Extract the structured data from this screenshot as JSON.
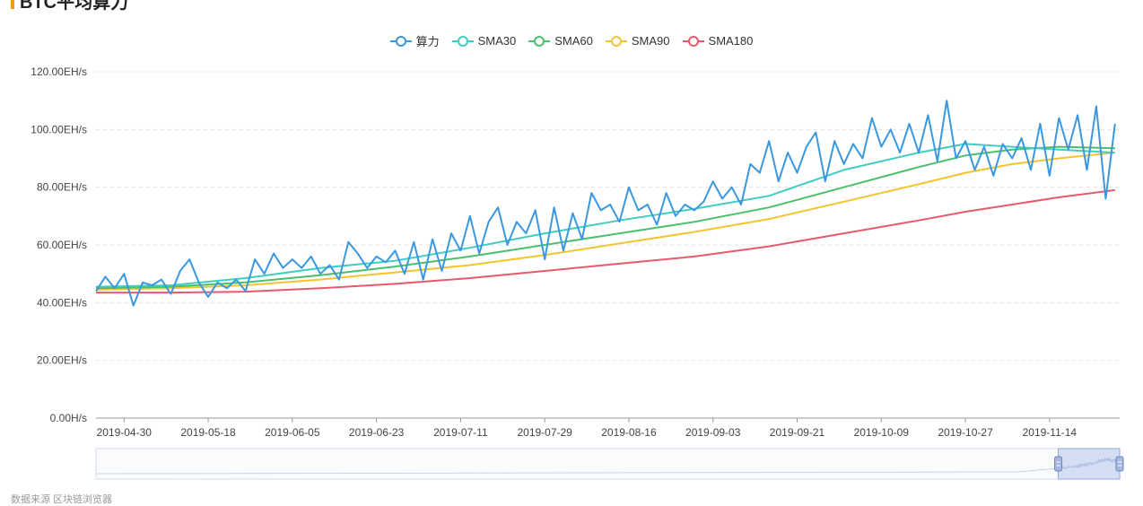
{
  "title": "BTC平均算力",
  "accent_color": "#f39a1e",
  "chart_data": {
    "type": "line",
    "y_unit": "EH/s",
    "ylim": [
      0,
      120
    ],
    "y_ticks": [
      "0.00H/s",
      "20.00EH/s",
      "40.00EH/s",
      "60.00EH/s",
      "80.00EH/s",
      "100.00EH/s",
      "120.00EH/s"
    ],
    "x_ticks": [
      "2019-04-30",
      "2019-05-18",
      "2019-06-05",
      "2019-06-23",
      "2019-07-11",
      "2019-07-29",
      "2019-08-16",
      "2019-09-03",
      "2019-09-21",
      "2019-10-09",
      "2019-10-27",
      "2019-11-14"
    ],
    "x_range": [
      "2019-04-24",
      "2019-11-29"
    ],
    "grid": "horizontal-dashed",
    "legend_position": "top-center",
    "series": [
      {
        "name": "算力",
        "color": "#3a98e0",
        "x": [
          "2019-04-24",
          "2019-04-26",
          "2019-04-28",
          "2019-04-30",
          "2019-05-02",
          "2019-05-04",
          "2019-05-06",
          "2019-05-08",
          "2019-05-10",
          "2019-05-12",
          "2019-05-14",
          "2019-05-16",
          "2019-05-18",
          "2019-05-20",
          "2019-05-22",
          "2019-05-24",
          "2019-05-26",
          "2019-05-28",
          "2019-05-30",
          "2019-06-01",
          "2019-06-03",
          "2019-06-05",
          "2019-06-07",
          "2019-06-09",
          "2019-06-11",
          "2019-06-13",
          "2019-06-15",
          "2019-06-17",
          "2019-06-19",
          "2019-06-21",
          "2019-06-23",
          "2019-06-25",
          "2019-06-27",
          "2019-06-29",
          "2019-07-01",
          "2019-07-03",
          "2019-07-05",
          "2019-07-07",
          "2019-07-09",
          "2019-07-11",
          "2019-07-13",
          "2019-07-15",
          "2019-07-17",
          "2019-07-19",
          "2019-07-21",
          "2019-07-23",
          "2019-07-25",
          "2019-07-27",
          "2019-07-29",
          "2019-07-31",
          "2019-08-02",
          "2019-08-04",
          "2019-08-06",
          "2019-08-08",
          "2019-08-10",
          "2019-08-12",
          "2019-08-14",
          "2019-08-16",
          "2019-08-18",
          "2019-08-20",
          "2019-08-22",
          "2019-08-24",
          "2019-08-26",
          "2019-08-28",
          "2019-08-30",
          "2019-09-01",
          "2019-09-03",
          "2019-09-05",
          "2019-09-07",
          "2019-09-09",
          "2019-09-11",
          "2019-09-13",
          "2019-09-15",
          "2019-09-17",
          "2019-09-19",
          "2019-09-21",
          "2019-09-23",
          "2019-09-25",
          "2019-09-27",
          "2019-09-29",
          "2019-10-01",
          "2019-10-03",
          "2019-10-05",
          "2019-10-07",
          "2019-10-09",
          "2019-10-11",
          "2019-10-13",
          "2019-10-15",
          "2019-10-17",
          "2019-10-19",
          "2019-10-21",
          "2019-10-23",
          "2019-10-25",
          "2019-10-27",
          "2019-10-29",
          "2019-10-31",
          "2019-11-02",
          "2019-11-04",
          "2019-11-06",
          "2019-11-08",
          "2019-11-10",
          "2019-11-12",
          "2019-11-14",
          "2019-11-16",
          "2019-11-18",
          "2019-11-20",
          "2019-11-22",
          "2019-11-24",
          "2019-11-26",
          "2019-11-28"
        ],
        "values": [
          44,
          49,
          45,
          50,
          39,
          47,
          46,
          48,
          43,
          51,
          55,
          47,
          42,
          47,
          45,
          48,
          44,
          55,
          50,
          57,
          52,
          55,
          52,
          56,
          50,
          53,
          48,
          61,
          57,
          52,
          56,
          54,
          58,
          50,
          61,
          48,
          62,
          51,
          64,
          58,
          70,
          57,
          68,
          73,
          60,
          68,
          64,
          72,
          55,
          73,
          58,
          71,
          62,
          78,
          72,
          74,
          68,
          80,
          72,
          74,
          67,
          78,
          70,
          74,
          72,
          75,
          82,
          76,
          80,
          74,
          88,
          85,
          96,
          82,
          92,
          85,
          94,
          99,
          82,
          96,
          88,
          95,
          90,
          104,
          94,
          100,
          92,
          102,
          92,
          105,
          89,
          110,
          90,
          96,
          86,
          94,
          84,
          95,
          90,
          97,
          86,
          102,
          84,
          104,
          93,
          105,
          86,
          108,
          76,
          102
        ]
      },
      {
        "name": "SMA30",
        "color": "#3fcdc3",
        "x": [
          "2019-04-24",
          "2019-05-10",
          "2019-05-26",
          "2019-06-11",
          "2019-06-27",
          "2019-07-13",
          "2019-07-29",
          "2019-08-14",
          "2019-08-30",
          "2019-09-15",
          "2019-10-01",
          "2019-10-17",
          "2019-10-27",
          "2019-11-06",
          "2019-11-16",
          "2019-11-28"
        ],
        "values": [
          45.5,
          46,
          48.5,
          52,
          54.5,
          59,
          64,
          68.5,
          72.5,
          77,
          86,
          92,
          95,
          94,
          93,
          92
        ]
      },
      {
        "name": "SMA60",
        "color": "#4bbf6b",
        "x": [
          "2019-04-24",
          "2019-05-10",
          "2019-05-26",
          "2019-06-11",
          "2019-06-27",
          "2019-07-13",
          "2019-07-29",
          "2019-08-14",
          "2019-08-30",
          "2019-09-15",
          "2019-10-01",
          "2019-10-17",
          "2019-10-27",
          "2019-11-06",
          "2019-11-16",
          "2019-11-28"
        ],
        "values": [
          45,
          45.5,
          47,
          49.5,
          52.5,
          56,
          60,
          64,
          68,
          73,
          80,
          87,
          91,
          93,
          94,
          93.5
        ]
      },
      {
        "name": "SMA90",
        "color": "#f4c430",
        "x": [
          "2019-04-24",
          "2019-05-10",
          "2019-05-26",
          "2019-06-11",
          "2019-06-27",
          "2019-07-13",
          "2019-07-29",
          "2019-08-14",
          "2019-08-30",
          "2019-09-15",
          "2019-10-01",
          "2019-10-17",
          "2019-10-27",
          "2019-11-06",
          "2019-11-16",
          "2019-11-28"
        ],
        "values": [
          44.5,
          45,
          46,
          48,
          50.5,
          53,
          56.5,
          60.5,
          64.5,
          69,
          75,
          81,
          85,
          88,
          90,
          92
        ]
      },
      {
        "name": "SMA180",
        "color": "#e8596e",
        "x": [
          "2019-04-24",
          "2019-05-10",
          "2019-05-26",
          "2019-06-11",
          "2019-06-27",
          "2019-07-13",
          "2019-07-29",
          "2019-08-14",
          "2019-08-30",
          "2019-09-15",
          "2019-10-01",
          "2019-10-17",
          "2019-10-27",
          "2019-11-06",
          "2019-11-16",
          "2019-11-28"
        ],
        "values": [
          43.5,
          43.5,
          43.8,
          45,
          46.5,
          48.5,
          51,
          53.5,
          56,
          59.5,
          64,
          68.5,
          71.5,
          74,
          76.5,
          79
        ]
      }
    ]
  },
  "zoom": {
    "start": 0.94,
    "end": 1.0
  },
  "footer_text": "数据来源 区块链浏览器"
}
